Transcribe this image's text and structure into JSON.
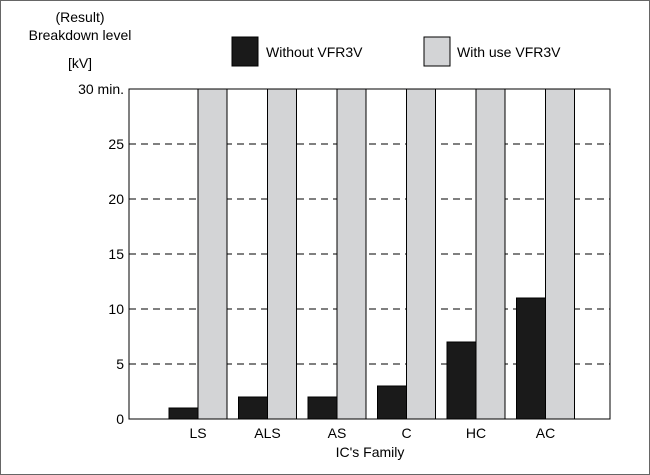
{
  "chart_data": {
    "type": "bar",
    "ylabel_lines": [
      "(Result)",
      "Breakdown level",
      "[kV]"
    ],
    "xlabel": "IC's Family",
    "categories": [
      "LS",
      "ALS",
      "AS",
      "C",
      "HC",
      "AC"
    ],
    "series": [
      {
        "name": "Without VFR3V",
        "values": [
          1,
          2,
          2,
          3,
          7,
          11
        ],
        "color": "#1a1a1a"
      },
      {
        "name": "With use VFR3V",
        "values": [
          30,
          30,
          30,
          30,
          30,
          30
        ],
        "color": "#d3d4d6"
      }
    ],
    "ylim": [
      0,
      30
    ],
    "yticks": [
      0,
      5,
      10,
      15,
      20,
      25,
      30
    ],
    "ytick_labels": [
      "0",
      "5",
      "10",
      "15",
      "20",
      "25",
      "30 min."
    ],
    "grid": "horizontal-dashed",
    "legend_position": "top"
  }
}
